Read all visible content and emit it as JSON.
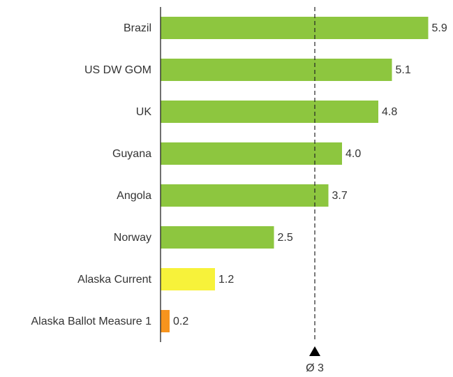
{
  "chart_data": {
    "type": "bar",
    "orientation": "horizontal",
    "categories": [
      "Brazil",
      "US DW GOM",
      "UK",
      "Guyana",
      "Angola",
      "Norway",
      "Alaska Current",
      "Alaska Ballot Measure 1"
    ],
    "values": [
      5.9,
      5.1,
      4.8,
      4.0,
      3.7,
      2.5,
      1.2,
      0.2
    ],
    "value_labels": [
      "5.9",
      "5.1",
      "4.8",
      "4.0",
      "3.7",
      "2.5",
      "1.2",
      "0.2"
    ],
    "colors": [
      "#8dc63f",
      "#8dc63f",
      "#8dc63f",
      "#8dc63f",
      "#8dc63f",
      "#8dc63f",
      "#f7f23a",
      "#f7941d"
    ],
    "xlim": [
      0,
      6
    ],
    "average": {
      "value": 3.4,
      "label": "Ø 3"
    }
  }
}
